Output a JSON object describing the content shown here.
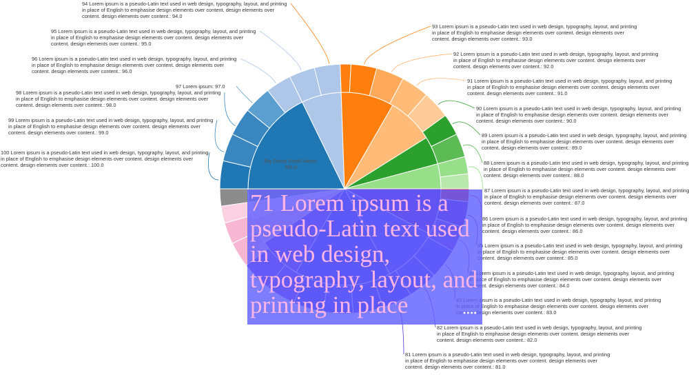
{
  "chart_data": {
    "type": "sunburst",
    "center_label": {
      "name": "Big Group Small Name:",
      "value": "394.0"
    },
    "item_text": "Lorem ipsum is a pseudo-Latin text used in web design, typography, layout, and printing in place of English to emphasise design elements over content. design elements over content. design elements over content.",
    "items": [
      {
        "id": 100,
        "value": 100.0,
        "label": "100 Lorem ipsum is a pseudo-Latin text used in web design, typography, layout, and printing in place of English to emphasise design elements over content. design elements over content. design elements over content.: 100.0"
      },
      {
        "id": 99,
        "value": 99.0,
        "label": "99 Lorem ipsum is a pseudo-Latin text used in web design, typography, layout, and printing in place of English to emphasise design elements over content. design elements over content. design elements over content.: 99.0"
      },
      {
        "id": 98,
        "value": 98.0,
        "label": "98 Lorem ipsum is a pseudo-Latin text used in web design, typography, layout, and printing in place of English to emphasise design elements over content. design elements over content. design elements over content.: 98.0"
      },
      {
        "id": 97,
        "value": 97.0,
        "label": "97 Lorem ipsum: 97.0"
      },
      {
        "id": 96,
        "value": 96.0,
        "label": "96 Lorem ipsum is a pseudo-Latin text used in web design, typography, layout, and printing in place of English to emphasise design elements over content. design elements over content. design elements over content.: 96.0"
      },
      {
        "id": 95,
        "value": 95.0,
        "label": "95 Lorem ipsum is a pseudo-Latin text used in web design, typography, layout, and printing in place of English to emphasise design elements over content. design elements over content. design elements over content.: 95.0"
      },
      {
        "id": 94,
        "value": 94.0,
        "label": "94 Lorem ipsum is a pseudo-Latin text used in web design, typography, layout, and printing in place of English to emphasise design elements over content. design elements over content. design elements over content.: 94.0"
      },
      {
        "id": 93,
        "value": 93.0,
        "label": "93 Lorem ipsum is a pseudo-Latin text used in web design, typography, layout, and printing in place of English to emphasise design elements over content. design elements over content. design elements over content.: 93.0"
      },
      {
        "id": 92,
        "value": 92.0,
        "label": "92 Lorem ipsum is a pseudo-Latin text used in web design, typography, layout, and printing in place of English to emphasise design elements over content. design elements over content. design elements over content.: 92.0"
      },
      {
        "id": 91,
        "value": 91.0,
        "label": "91 Lorem ipsum is a pseudo-Latin text used in web design, typography, layout, and printing in place of English to emphasise design elements over content. design elements over content. design elements over content.: 91.0"
      },
      {
        "id": 90,
        "value": 90.0,
        "label": "90 Lorem ipsum is a pseudo-Latin text used in web design, typography, layout, and printing in place of English to emphasise design elements over content. design elements over content. design elements over content.: 90.0"
      },
      {
        "id": 89,
        "value": 89.0,
        "label": "89 Lorem ipsum is a pseudo-Latin text used in web design, typography, layout, and printing in place of English to emphasise design elements over content. design elements over content. design elements over content.: 89.0"
      },
      {
        "id": 88,
        "value": 88.0,
        "label": "88 Lorem ipsum is a pseudo-Latin text used in web design, typography, layout, and printing in place of English to emphasise design elements over content. design elements over content. design elements over content.: 88.0"
      },
      {
        "id": 87,
        "value": 87.0,
        "label": "87 Lorem ipsum is a pseudo-Latin text used in web design, typography, layout, and printing in place of English to emphasise design elements over content. design elements over content. design elements over content.: 87.0"
      },
      {
        "id": 86,
        "value": 86.0,
        "label": "86 Lorem ipsum is a pseudo-Latin text used in web design, typography, layout, and printing in place of English to emphasise design elements over content. design elements over content. design elements over content.: 86.0"
      },
      {
        "id": 85,
        "value": 85.0,
        "label": "85 Lorem ipsum is a pseudo-Latin text used in web design, typography, layout, and printing in place of English to emphasise design elements over content. design elements over content. design elements over content.: 85.0"
      },
      {
        "id": 84,
        "value": 84.0,
        "label": "84 Lorem ipsum is a pseudo-Latin text used in web design, typography, layout, and printing in place of English to emphasise design elements over content. design elements over content. design elements over content.: 84.0"
      },
      {
        "id": 83,
        "value": 83.0,
        "label": "83 Lorem ipsum is a pseudo-Latin text used in web design, typography, layout, and printing in place of English to emphasise design elements over content. design elements over content. design elements over content.: 83.0"
      },
      {
        "id": 82,
        "value": 82.0,
        "label": "82 Lorem ipsum is a pseudo-Latin text used in web design, typography, layout, and printing in place of English to emphasise design elements over content. design elements over content. design elements over content.: 82.0"
      },
      {
        "id": 81,
        "value": 81.0,
        "label": "81 Lorem ipsum is a pseudo-Latin text used in web design, typography, layout, and printing in place of English to emphasise design elements over content. design elements over content. design elements over content.: 81.0"
      }
    ],
    "tooltip": {
      "text": "71 Lorem ipsum is a pseudo-Latin text used in web design, typography, layout, and printing in place",
      "dots": "●●●●"
    },
    "colors": {
      "blue": [
        "#1f77b4",
        "#3a87c0",
        "#5a9fcf",
        "#aec7e8"
      ],
      "orange": [
        "#ff7f0e",
        "#ffa95a",
        "#ffbb78",
        "#ffcc99"
      ],
      "green": [
        "#2ca02c",
        "#5dbb55",
        "#98df8a",
        "#b9e8ad"
      ],
      "red": "#d62728",
      "purple": [
        "#6b1fb5",
        "#7a3bd0",
        "#5b3fe0",
        "#4a38d8"
      ],
      "pink": [
        "#f7b6d2",
        "#fbd0e0"
      ],
      "gray": "#8c8c8c",
      "tooltip_bg": "#6060ff",
      "tooltip_text": "#ffb6e6"
    }
  }
}
